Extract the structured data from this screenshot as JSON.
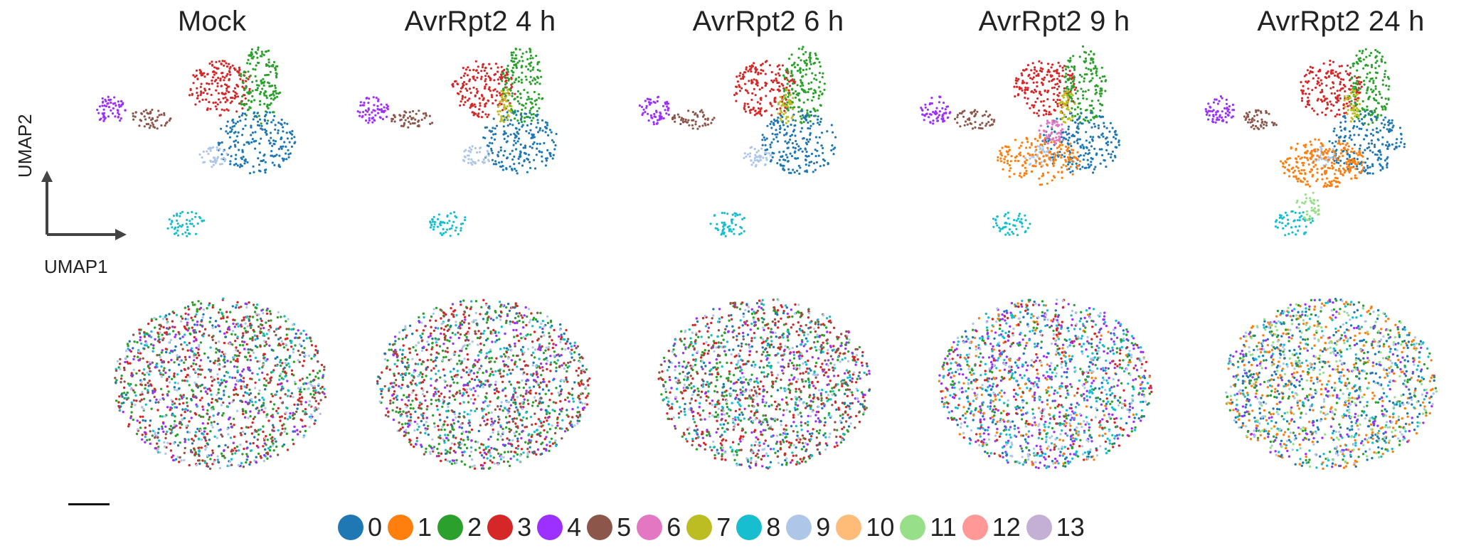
{
  "panels": [
    {
      "title": "Mock",
      "dominant": [
        "#1f77b4",
        "#d62728",
        "#2ca02c"
      ]
    },
    {
      "title": "AvrRpt2 4 h",
      "dominant": [
        "#1f77b4",
        "#d62728",
        "#2ca02c",
        "#bcbd22"
      ]
    },
    {
      "title": "AvrRpt2 6 h",
      "dominant": [
        "#1f77b4",
        "#d62728",
        "#2ca02c",
        "#bcbd22"
      ]
    },
    {
      "title": "AvrRpt2 9 h",
      "dominant": [
        "#1f77b4",
        "#d62728",
        "#2ca02c",
        "#ff7f0e",
        "#e377c2"
      ]
    },
    {
      "title": "AvrRpt2 24 h",
      "dominant": [
        "#1f77b4",
        "#d62728",
        "#ff7f0e",
        "#2ca02c"
      ]
    }
  ],
  "axes": {
    "x": "UMAP1",
    "y": "UMAP2"
  },
  "legend": [
    {
      "label": "0",
      "color": "#1f77b4"
    },
    {
      "label": "1",
      "color": "#ff7f0e"
    },
    {
      "label": "2",
      "color": "#2ca02c"
    },
    {
      "label": "3",
      "color": "#d62728"
    },
    {
      "label": "4",
      "color": "#9b30ff"
    },
    {
      "label": "5",
      "color": "#8c564b"
    },
    {
      "label": "6",
      "color": "#e377c2"
    },
    {
      "label": "7",
      "color": "#bcbd22"
    },
    {
      "label": "8",
      "color": "#17becf"
    },
    {
      "label": "9",
      "color": "#aec7e8"
    },
    {
      "label": "10",
      "color": "#ffbb78"
    },
    {
      "label": "11",
      "color": "#98df8a"
    },
    {
      "label": "12",
      "color": "#ff9896"
    },
    {
      "label": "13",
      "color": "#c5b0d5"
    }
  ]
}
